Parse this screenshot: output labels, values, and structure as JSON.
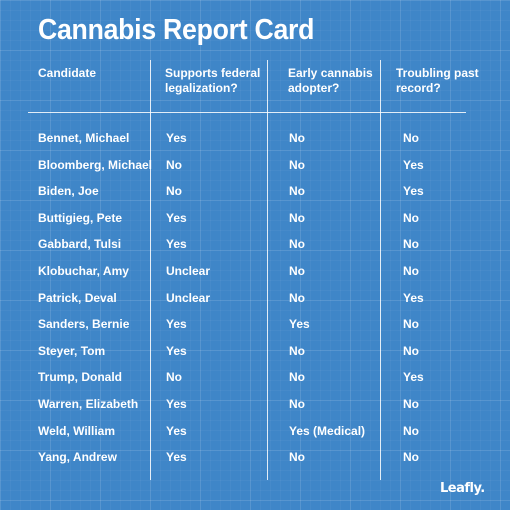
{
  "title": "Cannabis Report Card",
  "headers": [
    "Candidate",
    "Supports federal legalization?",
    "Early cannabis adopter?",
    "Troubling past record?"
  ],
  "rows": [
    [
      "Bennet, Michael",
      "Yes",
      "No",
      "No"
    ],
    [
      "Bloomberg, Michael",
      "No",
      "No",
      "Yes"
    ],
    [
      "Biden, Joe",
      "No",
      "No",
      "Yes"
    ],
    [
      "Buttigieg, Pete",
      "Yes",
      "No",
      "No"
    ],
    [
      "Gabbard, Tulsi",
      "Yes",
      "No",
      "No"
    ],
    [
      "Klobuchar, Amy",
      "Unclear",
      "No",
      "No"
    ],
    [
      "Patrick, Deval",
      "Unclear",
      "No",
      "Yes"
    ],
    [
      "Sanders, Bernie",
      "Yes",
      "Yes",
      "No"
    ],
    [
      "Steyer, Tom",
      "Yes",
      "No",
      "No"
    ],
    [
      "Trump, Donald",
      "No",
      "No",
      "Yes"
    ],
    [
      "Warren, Elizabeth",
      "Yes",
      "No",
      "No"
    ],
    [
      "Weld, William",
      "Yes",
      "Yes (Medical)",
      "No"
    ],
    [
      "Yang, Andrew",
      "Yes",
      "No",
      "No"
    ]
  ],
  "logo": "Leafly."
}
